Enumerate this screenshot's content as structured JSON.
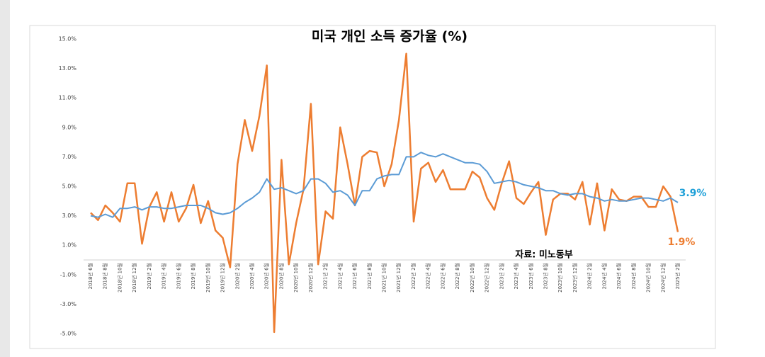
{
  "chart_data": {
    "type": "line",
    "title": "미국 개인 소득 증가율 (%)",
    "categories": [
      "2018년 6월",
      null,
      "2018년 8월",
      null,
      "2018년 10월",
      null,
      "2018년 12월",
      null,
      "2019년 2월",
      null,
      "2019년 4월",
      null,
      "2019년 6월",
      null,
      "2019년 8월",
      null,
      "2019년 10월",
      null,
      "2019년 12월",
      null,
      "2020년 2월",
      null,
      "2020년 4월",
      null,
      "2020년 6월",
      null,
      "2020년 8월",
      null,
      "2020년 10월",
      null,
      "2020년 12월",
      null,
      "2021년 2월",
      null,
      "2021년 4월",
      null,
      "2021년 6월",
      null,
      "2021년 8월",
      null,
      "2021년 10월",
      null,
      "2021년 12월",
      null,
      "2022년 2월",
      null,
      "2022년 4월",
      null,
      "2022년 6월",
      null,
      "2022년 8월",
      null,
      "2022년 10월",
      null,
      "2022년 12월",
      null,
      "2023년 2월",
      null,
      "2023년 4월",
      null,
      "2023년 6월",
      null,
      "2023년 8월",
      null,
      "2023년 10월",
      null,
      "2023년 12월",
      null,
      "2024년 2월",
      null,
      "2024년 4월",
      null,
      "2024년 6월",
      null,
      "2024년 8월",
      null,
      "2024년 10월",
      null,
      "2024년 12월",
      null,
      "2025년 2월"
    ],
    "series": [
      {
        "color": "#ed7d31",
        "values": [
          3.2,
          2.7,
          3.7,
          3.2,
          2.6,
          5.2,
          5.2,
          1.1,
          3.6,
          4.6,
          2.6,
          4.6,
          2.6,
          3.5,
          5.1,
          2.5,
          4.0,
          2.0,
          1.5,
          -0.5,
          6.5,
          9.5,
          7.4,
          9.8,
          13.2,
          -4.9,
          6.8,
          -0.3,
          2.5,
          4.8,
          10.6,
          -0.3,
          3.3,
          2.8,
          9.0,
          6.5,
          3.7,
          7.0,
          7.4,
          7.3,
          5.0,
          6.5,
          9.5,
          14.0,
          2.6,
          6.2,
          6.6,
          5.3,
          6.1,
          4.8,
          4.8,
          4.8,
          6.0,
          5.6,
          4.2,
          3.4,
          5.2,
          6.7,
          4.2,
          3.8,
          4.6,
          5.3,
          1.7,
          4.1,
          4.5,
          4.5,
          4.1,
          5.3,
          2.4,
          5.2,
          2.0,
          4.8,
          4.1,
          4.0,
          4.3,
          4.3,
          3.6,
          3.6,
          5.0,
          4.3,
          1.9
        ]
      },
      {
        "color": "#5b9bd5",
        "values": [
          3.0,
          2.9,
          3.1,
          2.9,
          3.5,
          3.5,
          3.6,
          3.4,
          3.6,
          3.6,
          3.5,
          3.5,
          3.6,
          3.7,
          3.7,
          3.7,
          3.5,
          3.2,
          3.1,
          3.2,
          3.5,
          3.9,
          4.2,
          4.6,
          5.5,
          4.8,
          4.9,
          4.7,
          4.5,
          4.7,
          5.5,
          5.5,
          5.2,
          4.6,
          4.7,
          4.4,
          3.7,
          4.7,
          4.7,
          5.5,
          5.7,
          5.8,
          5.8,
          7.0,
          7.0,
          7.3,
          7.1,
          7.0,
          7.2,
          7.0,
          6.8,
          6.6,
          6.6,
          6.5,
          6.0,
          5.2,
          5.3,
          5.4,
          5.3,
          5.1,
          5.0,
          4.9,
          4.7,
          4.7,
          4.5,
          4.4,
          4.5,
          4.5,
          4.3,
          4.2,
          4.0,
          4.1,
          4.0,
          4.0,
          4.1,
          4.2,
          4.2,
          4.1,
          4.0,
          4.2,
          3.9
        ]
      }
    ],
    "ylim": [
      -5,
      15
    ],
    "yticks": [
      {
        "value": -5,
        "label": "-5.0%"
      },
      {
        "value": -3,
        "label": "-3.0%"
      },
      {
        "value": -1,
        "label": "-1.0%"
      },
      {
        "value": 1,
        "label": "1.0%"
      },
      {
        "value": 3,
        "label": "3.0%"
      },
      {
        "value": 5,
        "label": "5.0%"
      },
      {
        "value": 7,
        "label": "7.0%"
      },
      {
        "value": 9,
        "label": "9.0%"
      },
      {
        "value": 11,
        "label": "11.0%"
      },
      {
        "value": 13,
        "label": "13.0%"
      },
      {
        "value": 15,
        "label": "15.0%"
      }
    ],
    "annotations": [
      {
        "text": "3.9%",
        "color": "#1fa0d8"
      },
      {
        "text": "1.9%",
        "color": "#ed7d31"
      },
      {
        "text": "자료: 미노동부",
        "color": "#000000"
      }
    ]
  }
}
